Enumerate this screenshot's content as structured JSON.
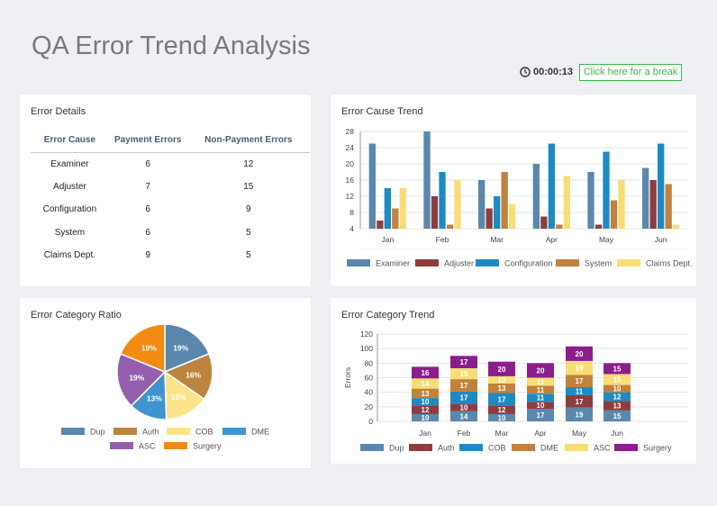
{
  "header": {
    "title": "QA Error Trend Analysis",
    "timer": "00:00:13",
    "break_button": "Click here for a break"
  },
  "error_details": {
    "title": "Error Details",
    "columns": [
      "Error Cause",
      "Payment Errors",
      "Non-Payment Errors"
    ],
    "rows": [
      [
        "Examiner",
        "6",
        "12"
      ],
      [
        "Adjuster",
        "7",
        "15"
      ],
      [
        "Configuration",
        "6",
        "9"
      ],
      [
        "System",
        "6",
        "5"
      ],
      [
        "Claims Dept.",
        "9",
        "5"
      ]
    ]
  },
  "chart_data": [
    {
      "id": "cause-trend",
      "type": "bar",
      "title": "Error Cause Trend",
      "categories": [
        "Jan",
        "Feb",
        "Mar",
        "Apr",
        "May",
        "Jun"
      ],
      "ylim": [
        4,
        28
      ],
      "yticks": [
        4,
        8,
        12,
        16,
        20,
        24,
        28
      ],
      "grid": true,
      "legend": "bottom",
      "series": [
        {
          "name": "Examiner",
          "color": "#5b87ad",
          "values": [
            25,
            28,
            16,
            20,
            18,
            19
          ]
        },
        {
          "name": "Adjuster",
          "color": "#8c3e3e",
          "values": [
            6,
            12,
            9,
            7,
            5,
            16
          ]
        },
        {
          "name": "Configuration",
          "color": "#1e8ac4",
          "values": [
            14,
            18,
            12,
            25,
            23,
            25
          ]
        },
        {
          "name": "System",
          "color": "#c0823c",
          "values": [
            9,
            5,
            18,
            5,
            11,
            15
          ]
        },
        {
          "name": "Claims Dept.",
          "color": "#f7dd75",
          "values": [
            14,
            16,
            10,
            17,
            16,
            5
          ]
        }
      ]
    },
    {
      "id": "category-ratio",
      "type": "pie",
      "title": "Error Category Ratio",
      "legend": "bottom",
      "series": [
        {
          "name": "Dup",
          "color": "#5b87ad",
          "value": 19,
          "label": "19%"
        },
        {
          "name": "Auth",
          "color": "#bd8440",
          "value": 16,
          "label": "16%"
        },
        {
          "name": "COB",
          "color": "#fbe38a",
          "value": 15,
          "label": "15%"
        },
        {
          "name": "DME",
          "color": "#3f93d0",
          "value": 13,
          "label": "13%"
        },
        {
          "name": "ASC",
          "color": "#9460ad",
          "value": 19,
          "label": "19%"
        },
        {
          "name": "Surgery",
          "color": "#f28b12",
          "value": 19,
          "label": "19%"
        }
      ]
    },
    {
      "id": "category-trend",
      "type": "bar",
      "stacked": true,
      "title": "Error Category Trend",
      "ylabel": "Errors",
      "categories": [
        "Jan",
        "Feb",
        "Mar",
        "Apr",
        "May",
        "Jun"
      ],
      "ylim": [
        0,
        120
      ],
      "yticks": [
        0,
        20,
        40,
        60,
        80,
        100,
        120
      ],
      "grid": true,
      "legend": "bottom",
      "series": [
        {
          "name": "Dup",
          "color": "#5b87ad",
          "values": [
            10,
            14,
            10,
            17,
            19,
            15
          ]
        },
        {
          "name": "Auth",
          "color": "#8c3e3e",
          "values": [
            12,
            10,
            12,
            10,
            17,
            13
          ]
        },
        {
          "name": "COB",
          "color": "#1e8ac4",
          "values": [
            10,
            17,
            17,
            11,
            11,
            12
          ]
        },
        {
          "name": "DME",
          "color": "#c0823c",
          "values": [
            13,
            17,
            13,
            11,
            17,
            10
          ]
        },
        {
          "name": "ASC",
          "color": "#f7dd75",
          "values": [
            14,
            15,
            10,
            11,
            19,
            15
          ]
        },
        {
          "name": "Surgery",
          "color": "#8b1e8b",
          "values": [
            16,
            17,
            20,
            20,
            20,
            15
          ]
        }
      ]
    }
  ]
}
